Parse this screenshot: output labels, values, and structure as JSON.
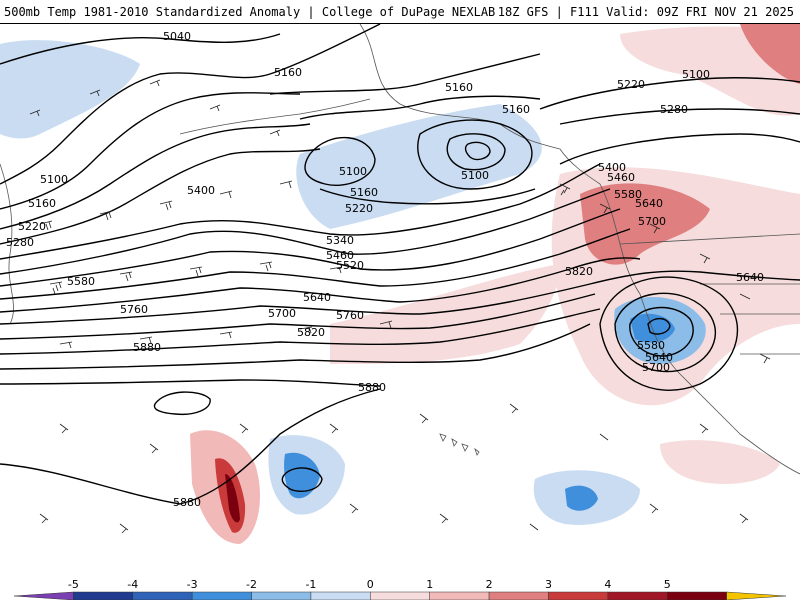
{
  "header": {
    "left": "500mb Temp 1981-2010 Standardized Anomaly | College of DuPage NEXLAB",
    "right": "18Z GFS | F111 Valid: 09Z FRI NOV 21 2025"
  },
  "height_labels": [
    "5040",
    "5160",
    "5160",
    "5160",
    "5220",
    "5100",
    "5100",
    "5100",
    "5160",
    "5220",
    "5280",
    "5400",
    "5460",
    "5580",
    "5640",
    "5700",
    "5400",
    "5340",
    "5460",
    "5520",
    "5220",
    "5160",
    "5100",
    "5280",
    "5580",
    "5640",
    "5700",
    "5760",
    "5760",
    "5820",
    "5880",
    "5880",
    "5880",
    "5820",
    "5640",
    "5580",
    "5640",
    "5700"
  ],
  "colorbar": {
    "ticks": [
      "-5",
      "-4",
      "-3",
      "-2",
      "-1",
      "0",
      "1",
      "2",
      "3",
      "4",
      "5"
    ],
    "colors": [
      "#7b3fb3",
      "#1f3a8f",
      "#2f63b8",
      "#3f8fdc",
      "#8cbde8",
      "#c9dcf2",
      "#f6dcdc",
      "#f2b9b9",
      "#e07f7f",
      "#c93a3a",
      "#a01828",
      "#7a0010",
      "#f5c400"
    ]
  },
  "chart_data": {
    "type": "heatmap",
    "title": "500mb Temp 1981-2010 Standardized Anomaly",
    "variable": "500 mb temperature standardized anomaly (sigma)",
    "contours": "500 mb geopotential height (dam x 10)",
    "color_range": [
      -5,
      5
    ],
    "anomaly_features": [
      {
        "name": "cold pool west of Aleutians",
        "value": -2
      },
      {
        "name": "cold core Gulf of Alaska low",
        "value": -2
      },
      {
        "name": "warm anomaly Pacific Northwest",
        "value": 3
      },
      {
        "name": "cold cutoff low off California",
        "value": -3
      },
      {
        "name": "warm anomaly south of ridge",
        "value": 5
      },
      {
        "name": "cold pocket central Pacific",
        "value": -3
      },
      {
        "name": "cold pocket east Pacific",
        "value": -2
      }
    ]
  }
}
